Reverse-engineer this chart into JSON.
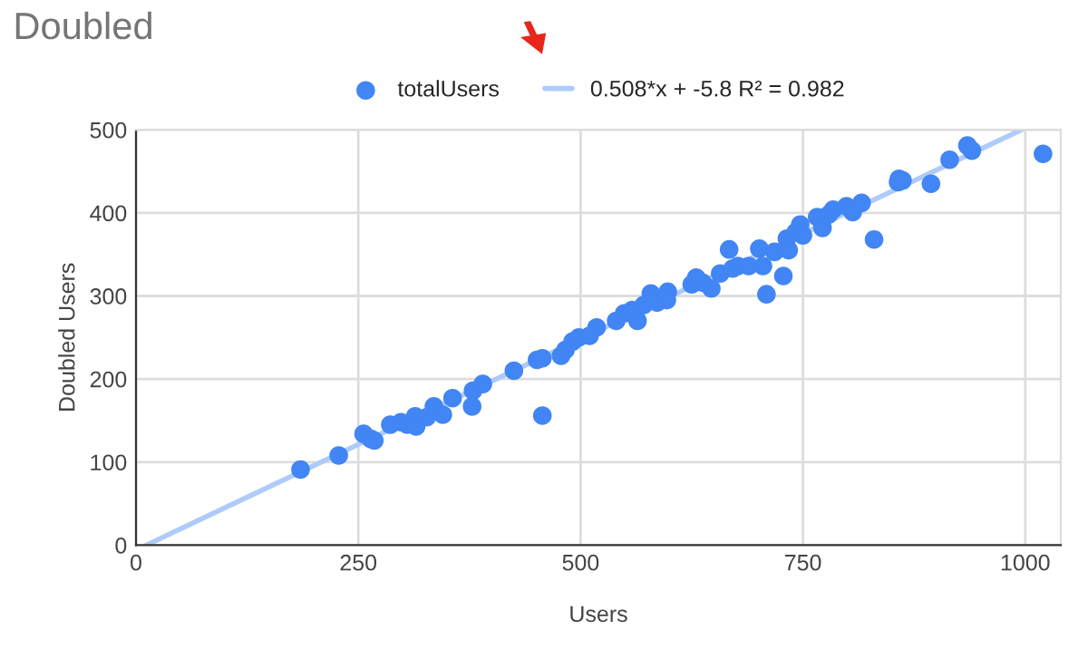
{
  "chart_data": {
    "type": "scatter",
    "title": "Doubled",
    "xlabel": "Users",
    "ylabel": "Doubled Users",
    "xlim": [
      0,
      1040
    ],
    "ylim": [
      0,
      500
    ],
    "xticks": [
      0,
      250,
      500,
      750,
      1000
    ],
    "yticks": [
      0,
      100,
      200,
      300,
      400,
      500
    ],
    "grid": true,
    "legend": "top",
    "series": [
      {
        "name": "totalUsers",
        "marker": "circle",
        "color": "#4285f4",
        "x": [
          185,
          228,
          256,
          264,
          268,
          286,
          298,
          305,
          314,
          315,
          327,
          335,
          345,
          356,
          378,
          379,
          390,
          425,
          451,
          457,
          457,
          478,
          483,
          491,
          498,
          510,
          518,
          540,
          549,
          558,
          564,
          571,
          579,
          586,
          598,
          597,
          625,
          630,
          637,
          647,
          657,
          667,
          671,
          677,
          689,
          701,
          705,
          709,
          718,
          728,
          732,
          734,
          742,
          747,
          750,
          766,
          772,
          779,
          784,
          799,
          806,
          816,
          830,
          857,
          858,
          862,
          894,
          915,
          935,
          940,
          1020
        ],
        "values": [
          91,
          108,
          134,
          128,
          126,
          145,
          148,
          145,
          155,
          143,
          154,
          167,
          157,
          177,
          167,
          186,
          194,
          210,
          223,
          225,
          156,
          228,
          235,
          245,
          250,
          252,
          262,
          270,
          279,
          283,
          270,
          289,
          303,
          292,
          305,
          295,
          314,
          322,
          316,
          309,
          327,
          356,
          333,
          336,
          336,
          357,
          336,
          302,
          353,
          324,
          369,
          355,
          377,
          386,
          373,
          395,
          382,
          398,
          404,
          408,
          401,
          412,
          368,
          437,
          441,
          439,
          435,
          464,
          481,
          475,
          471
        ]
      },
      {
        "name": "0.508*x + -5.8 R² = 0.982",
        "type": "line",
        "marker": "none",
        "color": "#aecbfa",
        "x": [
          11.4,
          995.7
        ],
        "values": [
          0,
          500
        ]
      }
    ]
  }
}
